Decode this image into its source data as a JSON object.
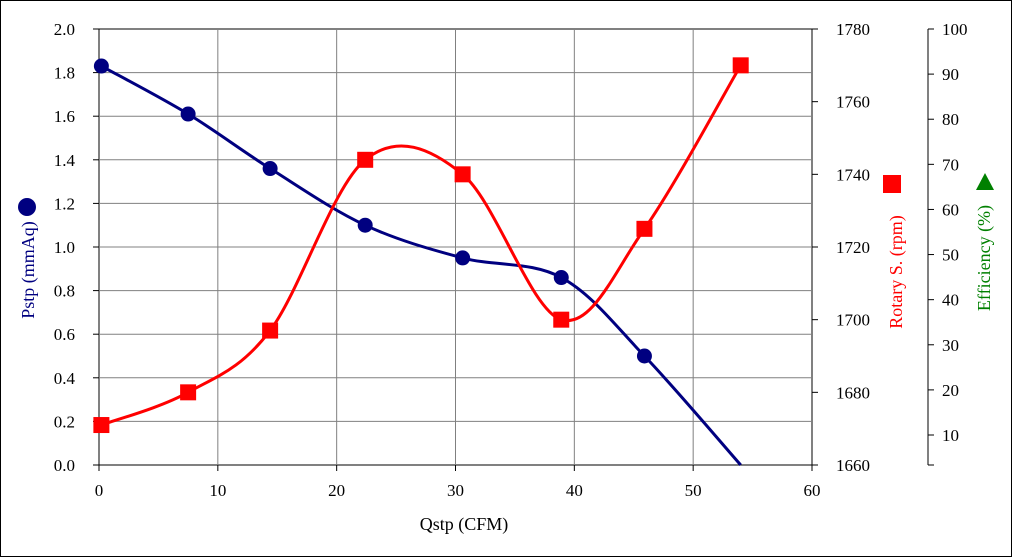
{
  "chart_data": {
    "type": "line",
    "xlabel": "Qstp (CFM)",
    "ylabel_left": "Pstp (mmAq)",
    "ylabel_right1": "Rotary S. (rpm)",
    "ylabel_right2": "Efficiency (%)",
    "xlim": [
      0,
      60
    ],
    "ylim_left": [
      0,
      2.0
    ],
    "ylim_right1": [
      1660,
      1780
    ],
    "ylim_right2": [
      10,
      100
    ],
    "x_ticks": [
      "0",
      "10",
      "20",
      "30",
      "40",
      "50",
      "60"
    ],
    "y_left_ticks": [
      "0.0",
      "0.2",
      "0.4",
      "0.6",
      "0.8",
      "1.0",
      "1.2",
      "1.4",
      "1.6",
      "1.8",
      "2.0"
    ],
    "y_right1_ticks": [
      "1660",
      "1680",
      "1700",
      "1720",
      "1740",
      "1760",
      "1780"
    ],
    "y_right2_ticks": [
      "10",
      "20",
      "30",
      "40",
      "50",
      "60",
      "70",
      "80",
      "90",
      "100"
    ],
    "grid": true,
    "series": [
      {
        "axis": "left",
        "color": "#000080",
        "marker": "circle",
        "x": [
          0.2,
          7.5,
          14.4,
          22.4,
          30.6,
          38.9,
          45.9,
          54.0
        ],
        "y": [
          1.83,
          1.61,
          1.36,
          1.1,
          0.95,
          0.86,
          0.5,
          0.0
        ],
        "marker_count": 7
      },
      {
        "axis": "right1",
        "color": "#ff0000",
        "marker": "square",
        "x": [
          0.2,
          7.5,
          14.4,
          22.4,
          30.6,
          38.9,
          45.9,
          54.0
        ],
        "y": [
          1671,
          1680,
          1697,
          1744,
          1740,
          1700,
          1725,
          1770
        ],
        "marker_count": 8
      }
    ],
    "legend_markers": {
      "left": "circle",
      "right1": "square",
      "right2": "triangle",
      "left_color": "#000080",
      "right1_color": "#ff0000",
      "right2_color": "#008000",
      "right1_label_color": "#ff0000",
      "right2_label_color": "#008000"
    }
  }
}
